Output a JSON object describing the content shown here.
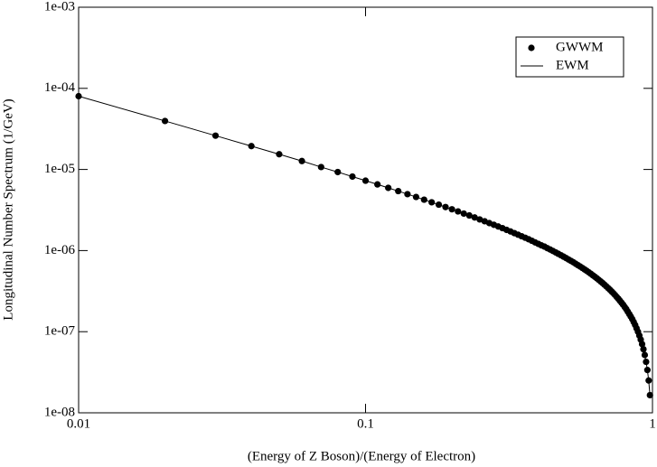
{
  "chart_data": {
    "type": "line",
    "xlabel": "(Energy of Z Boson)/(Energy of Electron)",
    "ylabel": "Longitudinal Number Spectrum (1/GeV)",
    "xscale": "log",
    "yscale": "log",
    "xlim": [
      0.01,
      1
    ],
    "ylim": [
      1e-08,
      0.001
    ],
    "xticks": [
      0.01,
      0.1,
      1
    ],
    "yticks": [
      {
        "value": 1e-08,
        "label": "1e-08"
      },
      {
        "value": 1e-07,
        "label": "1e-07"
      },
      {
        "value": 1e-06,
        "label": "1e-06"
      },
      {
        "value": 1e-05,
        "label": "1e-05"
      },
      {
        "value": 0.0001,
        "label": "1e-04"
      },
      {
        "value": 0.001,
        "label": "1e-03"
      }
    ],
    "legend": "upper right",
    "x": [
      0.01,
      0.02,
      0.03,
      0.04,
      0.05,
      0.06,
      0.07,
      0.08,
      0.09,
      0.1,
      0.11,
      0.12,
      0.13,
      0.14,
      0.15,
      0.16,
      0.17,
      0.18,
      0.19,
      0.2,
      0.21,
      0.22,
      0.23,
      0.24,
      0.25,
      0.26,
      0.27,
      0.28,
      0.29,
      0.3,
      0.31,
      0.32,
      0.33,
      0.34,
      0.35,
      0.36,
      0.37,
      0.38,
      0.39,
      0.4,
      0.41,
      0.42,
      0.43,
      0.44,
      0.45,
      0.46,
      0.47,
      0.48,
      0.49,
      0.5,
      0.51,
      0.52,
      0.53,
      0.54,
      0.55,
      0.56,
      0.57,
      0.58,
      0.59,
      0.6,
      0.61,
      0.62,
      0.63,
      0.64,
      0.65,
      0.66,
      0.67,
      0.68,
      0.69,
      0.7,
      0.71,
      0.72,
      0.73,
      0.74,
      0.75,
      0.76,
      0.77,
      0.78,
      0.79,
      0.8,
      0.81,
      0.82,
      0.83,
      0.84,
      0.85,
      0.86,
      0.87,
      0.88,
      0.89,
      0.9,
      0.91,
      0.92,
      0.93,
      0.94,
      0.95,
      0.96,
      0.97,
      0.98
    ],
    "series": [
      {
        "name": "GWWM",
        "color": "#000000",
        "style": "markers",
        "values": [
          8e-05,
          3.96e-05,
          2.61e-05,
          1.94e-05,
          1.54e-05,
          1.27e-05,
          1.07e-05,
          9.29e-06,
          8.17e-06,
          7.27e-06,
          6.54e-06,
          5.93e-06,
          5.41e-06,
          4.96e-06,
          4.58e-06,
          4.24e-06,
          3.94e-06,
          3.68e-06,
          3.44e-06,
          3.23e-06,
          3.04e-06,
          2.86e-06,
          2.71e-06,
          2.56e-06,
          2.42e-06,
          2.3e-06,
          2.18e-06,
          2.08e-06,
          1.98e-06,
          1.89e-06,
          1.8e-06,
          1.72e-06,
          1.64e-06,
          1.57e-06,
          1.5e-06,
          1.44e-06,
          1.38e-06,
          1.32e-06,
          1.26e-06,
          1.21e-06,
          1.16e-06,
          1.12e-06,
          1.07e-06,
          1.03e-06,
          9.88e-07,
          9.48e-07,
          9.11e-07,
          8.75e-07,
          8.41e-07,
          8.08e-07,
          7.76e-07,
          7.46e-07,
          7.17e-07,
          6.88e-07,
          6.61e-07,
          6.35e-07,
          6.1e-07,
          5.85e-07,
          5.62e-07,
          5.39e-07,
          5.17e-07,
          4.95e-07,
          4.75e-07,
          4.55e-07,
          4.35e-07,
          4.16e-07,
          3.98e-07,
          3.8e-07,
          3.63e-07,
          3.46e-07,
          3.3e-07,
          3.14e-07,
          2.99e-07,
          2.84e-07,
          2.69e-07,
          2.55e-07,
          2.41e-07,
          2.28e-07,
          2.15e-07,
          2.02e-07,
          1.9e-07,
          1.77e-07,
          1.65e-07,
          1.54e-07,
          1.43e-07,
          1.32e-07,
          1.21e-07,
          1.1e-07,
          9.99e-08,
          8.98e-08,
          7.99e-08,
          7.03e-08,
          6.08e-08,
          5.16e-08,
          4.25e-08,
          3.37e-08,
          2.5e-08,
          1.65e-08
        ]
      },
      {
        "name": "EWM",
        "color": "#000000",
        "style": "line",
        "values": [
          8e-05,
          3.96e-05,
          2.61e-05,
          1.94e-05,
          1.54e-05,
          1.27e-05,
          1.07e-05,
          9.29e-06,
          8.17e-06,
          7.27e-06,
          6.54e-06,
          5.93e-06,
          5.41e-06,
          4.96e-06,
          4.58e-06,
          4.24e-06,
          3.94e-06,
          3.68e-06,
          3.44e-06,
          3.23e-06,
          3.04e-06,
          2.86e-06,
          2.71e-06,
          2.56e-06,
          2.42e-06,
          2.3e-06,
          2.18e-06,
          2.08e-06,
          1.98e-06,
          1.89e-06,
          1.8e-06,
          1.72e-06,
          1.64e-06,
          1.57e-06,
          1.5e-06,
          1.44e-06,
          1.38e-06,
          1.32e-06,
          1.26e-06,
          1.21e-06,
          1.16e-06,
          1.12e-06,
          1.07e-06,
          1.03e-06,
          9.88e-07,
          9.48e-07,
          9.11e-07,
          8.75e-07,
          8.41e-07,
          8.08e-07,
          7.76e-07,
          7.46e-07,
          7.17e-07,
          6.88e-07,
          6.61e-07,
          6.35e-07,
          6.1e-07,
          5.85e-07,
          5.62e-07,
          5.39e-07,
          5.17e-07,
          4.95e-07,
          4.75e-07,
          4.55e-07,
          4.35e-07,
          4.16e-07,
          3.98e-07,
          3.8e-07,
          3.63e-07,
          3.46e-07,
          3.3e-07,
          3.14e-07,
          2.99e-07,
          2.84e-07,
          2.69e-07,
          2.55e-07,
          2.41e-07,
          2.28e-07,
          2.15e-07,
          2.02e-07,
          1.9e-07,
          1.77e-07,
          1.65e-07,
          1.54e-07,
          1.43e-07,
          1.32e-07,
          1.21e-07,
          1.1e-07,
          9.99e-08,
          8.98e-08,
          7.99e-08,
          7.03e-08,
          6.08e-08,
          5.16e-08,
          4.25e-08,
          3.37e-08,
          2.5e-08,
          1.65e-08
        ]
      }
    ]
  }
}
